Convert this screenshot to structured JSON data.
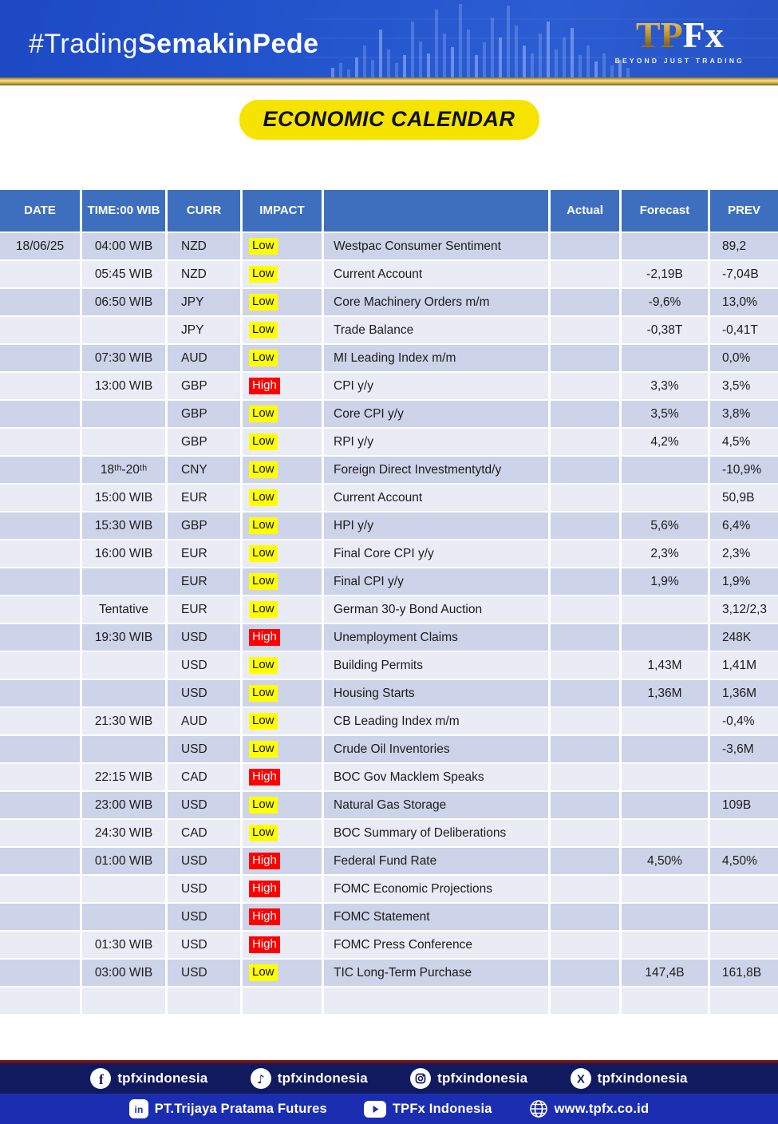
{
  "banner": {
    "hashtag_regular": "#Trading",
    "hashtag_bold": "SemakinPede",
    "logo_tp": "TP",
    "logo_fx": "Fx",
    "logo_tagline": "BEYOND JUST TRADING"
  },
  "title": "ECONOMIC CALENDAR",
  "table": {
    "columns": {
      "date": "DATE",
      "time": "TIME:00 WIB",
      "curr": "CURR",
      "impact": "IMPACT",
      "event": "",
      "actual": "Actual",
      "forecast": "Forecast",
      "prev": "PREV"
    },
    "rows": [
      {
        "date": "18/06/25",
        "time": "04:00 WIB",
        "curr": "NZD",
        "impact": "Low",
        "event": "Westpac Consumer Sentiment",
        "actual": "",
        "forecast": "",
        "prev": "89,2"
      },
      {
        "date": "",
        "time": "05:45 WIB",
        "curr": "NZD",
        "impact": "Low",
        "event": "Current Account",
        "actual": "",
        "forecast": "-2,19B",
        "prev": "-7,04B"
      },
      {
        "date": "",
        "time": "06:50 WIB",
        "curr": "JPY",
        "impact": "Low",
        "event": "Core Machinery Orders m/m",
        "actual": "",
        "forecast": "-9,6%",
        "prev": "13,0%"
      },
      {
        "date": "",
        "time": "",
        "curr": "JPY",
        "impact": "Low",
        "event": "Trade Balance",
        "actual": "",
        "forecast": "-0,38T",
        "prev": "-0,41T"
      },
      {
        "date": "",
        "time": "07:30 WIB",
        "curr": "AUD",
        "impact": "Low",
        "event": "MI Leading Index m/m",
        "actual": "",
        "forecast": "",
        "prev": "0,0%"
      },
      {
        "date": "",
        "time": "13:00 WIB",
        "curr": "GBP",
        "impact": "High",
        "event": "CPI y/y",
        "actual": "",
        "forecast": "3,3%",
        "prev": "3,5%"
      },
      {
        "date": "",
        "time": "",
        "curr": "GBP",
        "impact": "Low",
        "event": "Core CPI y/y",
        "actual": "",
        "forecast": "3,5%",
        "prev": "3,8%"
      },
      {
        "date": "",
        "time": "",
        "curr": "GBP",
        "impact": "Low",
        "event": "RPI y/y",
        "actual": "",
        "forecast": "4,2%",
        "prev": "4,5%"
      },
      {
        "date": "",
        "time": "18ᵗʰ-20ᵗʰ",
        "curr": "CNY",
        "impact": "Low",
        "event": "Foreign Direct Investmentytd/y",
        "actual": "",
        "forecast": "",
        "prev": "-10,9%"
      },
      {
        "date": "",
        "time": "15:00 WIB",
        "curr": "EUR",
        "impact": "Low",
        "event": "Current Account",
        "actual": "",
        "forecast": "",
        "prev": "50,9B"
      },
      {
        "date": "",
        "time": "15:30 WIB",
        "curr": "GBP",
        "impact": "Low",
        "event": "HPI y/y",
        "actual": "",
        "forecast": "5,6%",
        "prev": "6,4%"
      },
      {
        "date": "",
        "time": "16:00 WIB",
        "curr": "EUR",
        "impact": "Low",
        "event": "Final Core CPI y/y",
        "actual": "",
        "forecast": "2,3%",
        "prev": "2,3%"
      },
      {
        "date": "",
        "time": "",
        "curr": "EUR",
        "impact": "Low",
        "event": "Final CPI y/y",
        "actual": "",
        "forecast": "1,9%",
        "prev": "1,9%"
      },
      {
        "date": "",
        "time": "Tentative",
        "curr": "EUR",
        "impact": "Low",
        "event": "German 30-y Bond Auction",
        "actual": "",
        "forecast": "",
        "prev": "3,12/2,3"
      },
      {
        "date": "",
        "time": "19:30 WIB",
        "curr": "USD",
        "impact": "High",
        "event": "Unemployment Claims",
        "actual": "",
        "forecast": "",
        "prev": "248K"
      },
      {
        "date": "",
        "time": "",
        "curr": "USD",
        "impact": "Low",
        "event": "Building Permits",
        "actual": "",
        "forecast": "1,43M",
        "prev": "1,41M"
      },
      {
        "date": "",
        "time": "",
        "curr": "USD",
        "impact": "Low",
        "event": "Housing Starts",
        "actual": "",
        "forecast": "1,36M",
        "prev": "1,36M"
      },
      {
        "date": "",
        "time": "21:30 WIB",
        "curr": "AUD",
        "impact": "Low",
        "event": "CB Leading Index m/m",
        "actual": "",
        "forecast": "",
        "prev": "-0,4%"
      },
      {
        "date": "",
        "time": "",
        "curr": "USD",
        "impact": "Low",
        "event": "Crude Oil Inventories",
        "actual": "",
        "forecast": "",
        "prev": "-3,6M"
      },
      {
        "date": "",
        "time": "22:15 WIB",
        "curr": "CAD",
        "impact": "High",
        "event": "BOC Gov Macklem Speaks",
        "actual": "",
        "forecast": "",
        "prev": ""
      },
      {
        "date": "",
        "time": "23:00 WIB",
        "curr": "USD",
        "impact": "Low",
        "event": "Natural Gas Storage",
        "actual": "",
        "forecast": "",
        "prev": "109B"
      },
      {
        "date": "",
        "time": "24:30 WIB",
        "curr": "CAD",
        "impact": "Low",
        "event": "BOC Summary of Deliberations",
        "actual": "",
        "forecast": "",
        "prev": ""
      },
      {
        "date": "",
        "time": "01:00 WIB",
        "curr": "USD",
        "impact": "High",
        "event": "Federal Fund Rate",
        "actual": "",
        "forecast": "4,50%",
        "prev": "4,50%"
      },
      {
        "date": "",
        "time": "",
        "curr": "USD",
        "impact": "High",
        "event": "FOMC Economic Projections",
        "actual": "",
        "forecast": "",
        "prev": ""
      },
      {
        "date": "",
        "time": "",
        "curr": "USD",
        "impact": "High",
        "event": "FOMC Statement",
        "actual": "",
        "forecast": "",
        "prev": ""
      },
      {
        "date": "",
        "time": "01:30 WIB",
        "curr": "USD",
        "impact": "High",
        "event": "FOMC Press Conference",
        "actual": "",
        "forecast": "",
        "prev": ""
      },
      {
        "date": "",
        "time": "03:00 WIB",
        "curr": "USD",
        "impact": "Low",
        "event": "TIC Long-Term Purchase",
        "actual": "",
        "forecast": "147,4B",
        "prev": "161,8B"
      },
      {
        "date": "",
        "time": "",
        "curr": "",
        "impact": "",
        "event": "",
        "actual": "",
        "forecast": "",
        "prev": ""
      }
    ]
  },
  "footer": {
    "social": [
      {
        "icon": "facebook-icon",
        "label": "tpfxindonesia"
      },
      {
        "icon": "tiktok-icon",
        "label": "tpfxindonesia"
      },
      {
        "icon": "instagram-icon",
        "label": "tpfxindonesia"
      },
      {
        "icon": "x-icon",
        "label": "tpfxindonesia"
      }
    ],
    "info": [
      {
        "icon": "linkedin-icon",
        "label": "PT.Trijaya Pratama Futures"
      },
      {
        "icon": "youtube-icon",
        "label": "TPFx Indonesia"
      },
      {
        "icon": "globe-icon",
        "label": "www.tpfx.co.id"
      }
    ]
  },
  "colors": {
    "accent_yellow": "#F6E400",
    "impact_low_bg": "#FFFF00",
    "impact_high_bg": "#FF0000",
    "table_header_blue": "#3E6FBF",
    "row_dark": "#CDD3E8",
    "row_light": "#E9EBF5",
    "banner_blue": "#2456CE",
    "gold": "#D2A944",
    "maroon_line": "#6F1416",
    "footer_navy": "#111A5E",
    "footer_blue": "#1B2EB2"
  }
}
